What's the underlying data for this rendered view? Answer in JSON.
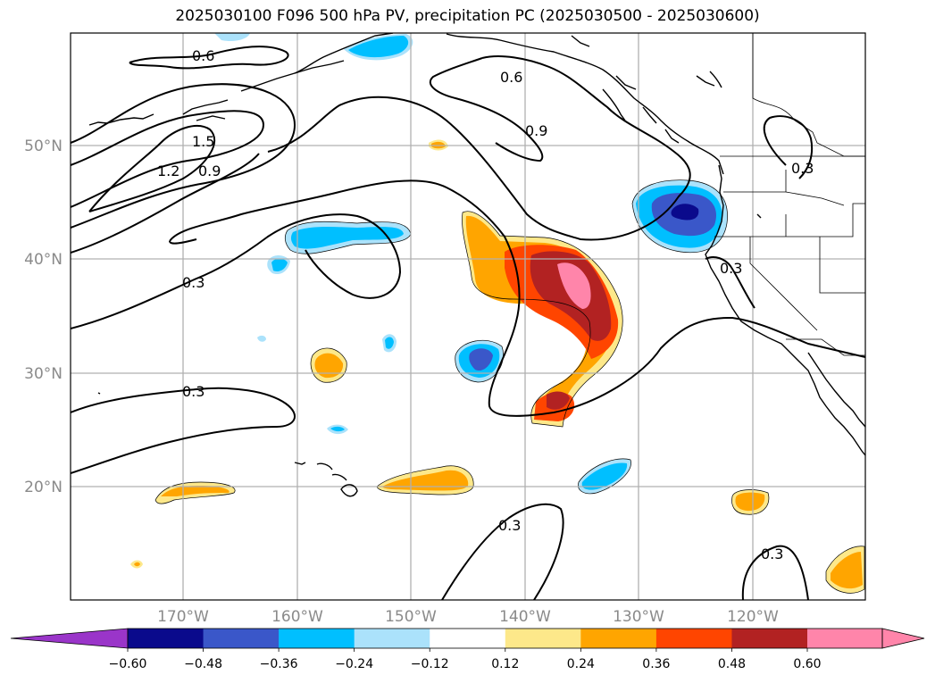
{
  "title": "2025030100 F096 500 hPa PV, precipitation PC (2025030500 - 2025030600)",
  "map": {
    "lat_labels": [
      "50°N",
      "40°N",
      "30°N",
      "20°N"
    ],
    "lon_labels": [
      "170°W",
      "160°W",
      "150°W",
      "140°W",
      "130°W",
      "120°W"
    ]
  },
  "pv_contour_labels": [
    "0.6",
    "1.5",
    "1.2",
    "0.9",
    "0.6",
    "0.9",
    "0.3",
    "0.3",
    "0.3",
    "0.3",
    "0.3",
    "0.3"
  ],
  "colorbar": {
    "tick_labels": [
      "−0.60",
      "−0.48",
      "−0.36",
      "−0.24",
      "−0.12",
      "0.12",
      "0.24",
      "0.36",
      "0.48",
      "0.60"
    ],
    "colors": [
      "#9a35c9",
      "#0a0a8c",
      "#3a57c9",
      "#00bfff",
      "#abe2fb",
      "#ffffff",
      "#fde88a",
      "#ffa500",
      "#ff4500",
      "#b22222",
      "#ff85aa",
      "#ff85aa"
    ],
    "levels": [
      -0.6,
      -0.48,
      -0.36,
      -0.24,
      -0.12,
      0.12,
      0.24,
      0.36,
      0.48,
      0.6
    ]
  }
}
